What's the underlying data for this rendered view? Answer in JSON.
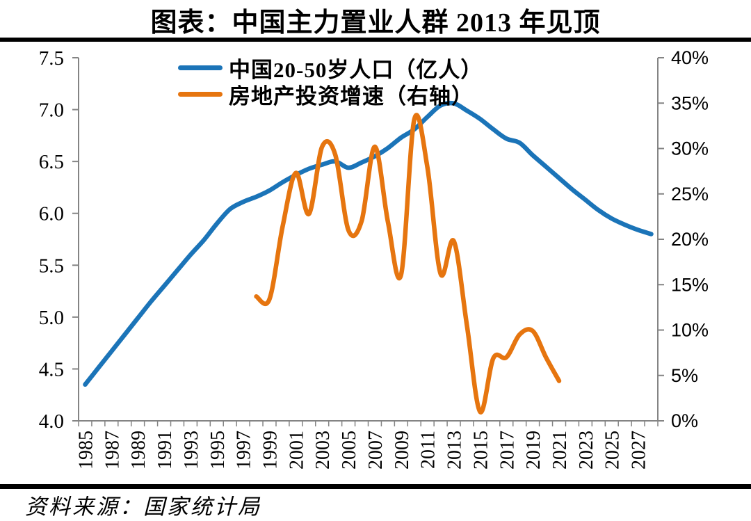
{
  "title": "图表：中国主力置业人群 2013 年见顶",
  "source": "资料来源：国家统计局",
  "colors": {
    "population_line": "#1B74B8",
    "investment_line": "#E6750F",
    "axis": "#848484",
    "rule": "#000000",
    "text": "#000000",
    "background": "#FFFFFF"
  },
  "chart_data": {
    "type": "line",
    "title": "图表：中国主力置业人群 2013 年见顶",
    "legend_position": "top-center-inside",
    "grid": false,
    "left_axis": {
      "label": "中国20-50岁人口（亿人）",
      "min": 4.0,
      "max": 7.5,
      "ticks": [
        "7.5",
        "7.0",
        "6.5",
        "6.0",
        "5.5",
        "5.0",
        "4.5",
        "4.0"
      ]
    },
    "right_axis": {
      "label": "房地产投资增速（%，右轴）",
      "min": 0,
      "max": 40,
      "ticks": [
        "40%",
        "35%",
        "30%",
        "25%",
        "20%",
        "15%",
        "10%",
        "5%",
        "0%"
      ]
    },
    "x_axis": {
      "range": [
        1985,
        2028
      ],
      "tick_labels": [
        "1985",
        "1987",
        "1989",
        "1991",
        "1993",
        "1995",
        "1997",
        "1999",
        "2001",
        "2003",
        "2005",
        "2007",
        "2009",
        "2011",
        "2013",
        "2015",
        "2017",
        "2019",
        "2021",
        "2023",
        "2025",
        "2027"
      ]
    },
    "series": [
      {
        "name": "中国20-50岁人口（亿人）",
        "axis": "left",
        "color": "#1B74B8",
        "x": [
          1985,
          1986,
          1987,
          1988,
          1989,
          1990,
          1991,
          1992,
          1993,
          1994,
          1995,
          1996,
          1997,
          1998,
          1999,
          2000,
          2001,
          2002,
          2003,
          2004,
          2005,
          2006,
          2007,
          2008,
          2009,
          2010,
          2011,
          2012,
          2013,
          2014,
          2015,
          2016,
          2017,
          2018,
          2019,
          2020,
          2021,
          2022,
          2023,
          2024,
          2025,
          2026,
          2027,
          2028
        ],
        "values": [
          4.35,
          4.51,
          4.67,
          4.83,
          4.99,
          5.15,
          5.3,
          5.45,
          5.6,
          5.74,
          5.9,
          6.04,
          6.11,
          6.16,
          6.22,
          6.3,
          6.37,
          6.43,
          6.47,
          6.5,
          6.44,
          6.49,
          6.55,
          6.63,
          6.73,
          6.81,
          6.93,
          7.04,
          7.06,
          6.99,
          6.91,
          6.81,
          6.72,
          6.68,
          6.56,
          6.45,
          6.34,
          6.23,
          6.13,
          6.03,
          5.95,
          5.89,
          5.84,
          5.8
        ]
      },
      {
        "name": "房地产投资增速（右轴）",
        "axis": "right",
        "color": "#E6750F",
        "x": [
          1998,
          1999,
          2000,
          2001,
          2002,
          2003,
          2004,
          2005,
          2006,
          2007,
          2008,
          2009,
          2010,
          2011,
          2012,
          2013,
          2014,
          2015,
          2016,
          2017,
          2018,
          2019,
          2020,
          2021
        ],
        "values": [
          13.7,
          13.4,
          21.4,
          27.3,
          22.8,
          30.2,
          29.3,
          21.0,
          22.0,
          30.2,
          21.9,
          16.1,
          33.2,
          27.9,
          16.2,
          19.8,
          10.5,
          1.0,
          6.9,
          7.0,
          9.5,
          9.9,
          7.0,
          4.4
        ]
      }
    ]
  }
}
